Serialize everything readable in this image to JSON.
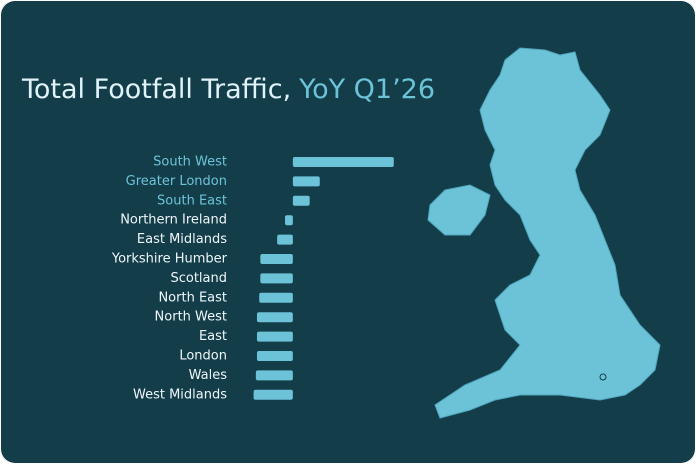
{
  "chart_data": {
    "type": "bar",
    "orientation": "horizontal",
    "title": "Total Footfall Traffic,",
    "subtitle": "YoY Q1’26",
    "categories": [
      "South West",
      "Greater London",
      "South East",
      "Northern Ireland",
      "East Midlands",
      "Yorkshire Humber",
      "Scotland",
      "North East",
      "North West",
      "East",
      "London",
      "Wales",
      "West Midlands"
    ],
    "values": [
      90,
      24,
      15,
      -7,
      -14,
      -29,
      -29,
      -30,
      -32,
      -32,
      -32,
      -33,
      -35
    ],
    "color": "#6cc3d8",
    "xlim": [
      -40,
      100
    ]
  }
}
